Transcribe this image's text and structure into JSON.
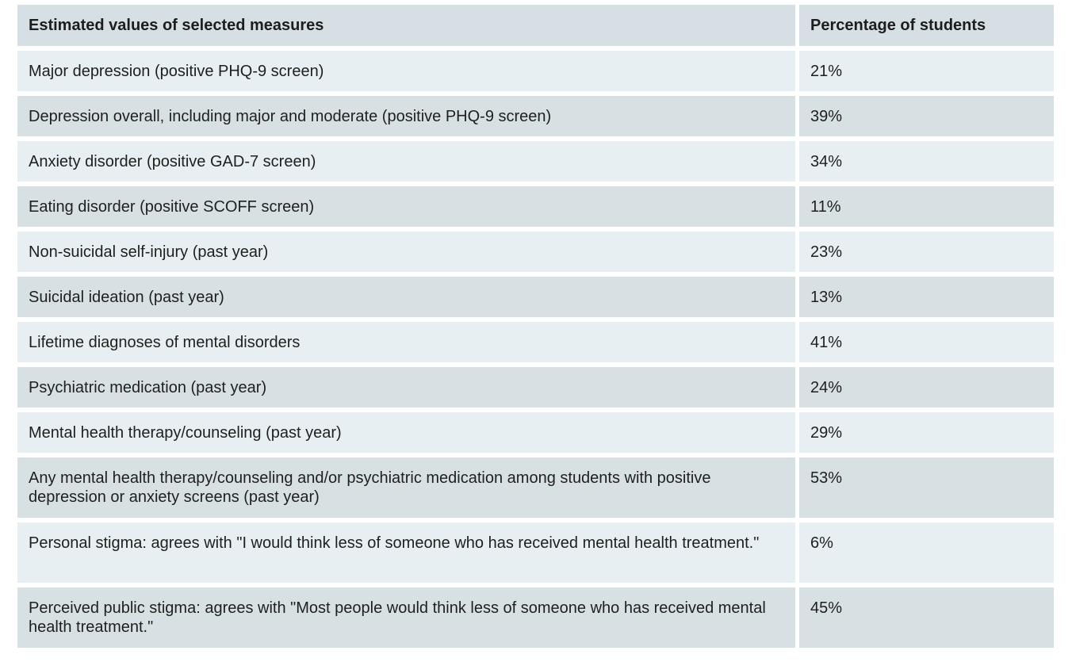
{
  "table": {
    "headers": [
      "Estimated values of selected measures",
      "Percentage of students"
    ],
    "rows": [
      {
        "measure": "Major depression (positive PHQ-9 screen)",
        "value": "21%"
      },
      {
        "measure": "Depression overall, including major and moderate (positive PHQ-9 screen)",
        "value": "39%"
      },
      {
        "measure": "Anxiety disorder (positive GAD-7 screen)",
        "value": "34%"
      },
      {
        "measure": "Eating disorder (positive SCOFF screen)",
        "value": "11%"
      },
      {
        "measure": "Non-suicidal self-injury (past year)",
        "value": "23%"
      },
      {
        "measure": "Suicidal ideation (past year)",
        "value": "13%"
      },
      {
        "measure": "Lifetime diagnoses of mental disorders",
        "value": "41%"
      },
      {
        "measure": "Psychiatric medication (past year)",
        "value": "24%"
      },
      {
        "measure": "Mental health therapy/counseling (past year)",
        "value": "29%"
      },
      {
        "measure": "Any mental health therapy/counseling and/or psychiatric medication among students with positive depression or anxiety screens (past year)",
        "value": "53%"
      },
      {
        "measure": "Personal stigma: agrees with \"I would think less of someone who has received mental health treatment.\"",
        "value": "6%"
      },
      {
        "measure": "Perceived public stigma: agrees with \"Most people would think less of someone who has received mental health treatment.\"",
        "value": "45%"
      }
    ]
  }
}
